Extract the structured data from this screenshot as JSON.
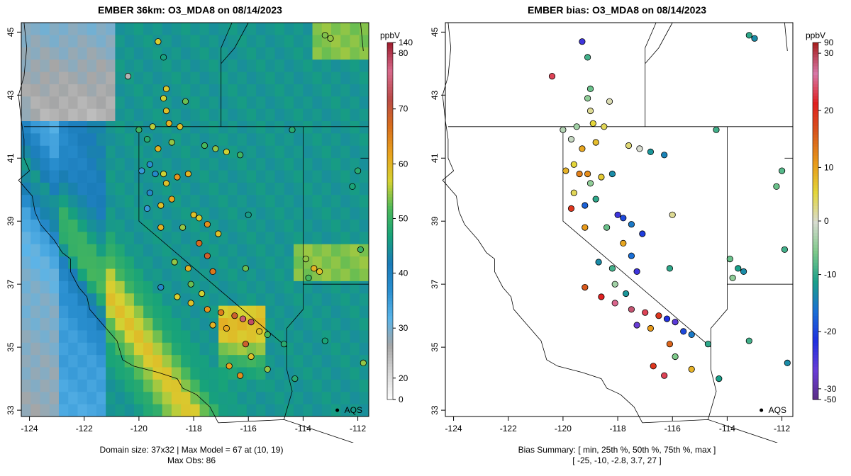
{
  "left_panel": {
    "title": "EMBER 36km: O3_MDA8 on 08/14/2023",
    "caption_line1": "Domain size: 37x32 | Max Model = 67 at (10, 19)",
    "caption_line2": "Max Obs: 86",
    "legend_unit": "ppbV",
    "legend_ticks": [
      "140",
      "80",
      "70",
      "60",
      "50",
      "40",
      "30",
      "20",
      "0"
    ],
    "marker_label": "AQS"
  },
  "right_panel": {
    "title": "EMBER bias: O3_MDA8 on 08/14/2023",
    "caption_line1": "Bias Summary: [ min, 25th %, 50th %, 75th %, max ]",
    "caption_line2": "[ -25,   -10,   -2.8,   3.7,   27 ]",
    "legend_unit": "ppbV",
    "legend_ticks": [
      "90",
      "30",
      "20",
      "10",
      "0",
      "-10",
      "-20",
      "-30",
      "-50"
    ],
    "marker_label": "AQS"
  },
  "axes": {
    "x_ticks": [
      "-124",
      "-122",
      "-120",
      "-118",
      "-116",
      "-114",
      "-112"
    ],
    "y_ticks": [
      "33",
      "35",
      "37",
      "39",
      "41",
      "43",
      "45"
    ],
    "lon_range": [
      -124.3,
      -111.6
    ],
    "lat_range": [
      32.8,
      45.3
    ]
  },
  "colors": {
    "ember_scale": [
      "#ffffff",
      "#d9d9d9",
      "#a6a6a6",
      "#5ab4e8",
      "#2a8fd0",
      "#1a7bb8",
      "#17a37a",
      "#4cb85a",
      "#d6d232",
      "#e8a21e",
      "#d86e1c",
      "#b94a48",
      "#d86a8c",
      "#a02030"
    ],
    "bias_scale": [
      "#5a2d82",
      "#6a3dd6",
      "#2030e0",
      "#1a6fd6",
      "#1aa08a",
      "#7ec98a",
      "#d8dcd0",
      "#e4d63a",
      "#e89a1a",
      "#d8581c",
      "#e02020",
      "#d878a8",
      "#a82020"
    ]
  },
  "chart_data": {
    "type": "map",
    "panels": [
      "EMBER 36km: O3_MDA8 on 08/14/2023",
      "EMBER bias: O3_MDA8 on 08/14/2023"
    ],
    "units": "ppbV",
    "domain": "37x32",
    "max_model": 67,
    "max_model_cell": [
      10,
      19
    ],
    "max_obs": 86,
    "bias_summary": {
      "min": -25,
      "p25": -10,
      "p50": -2.8,
      "p75": 3.7,
      "max": 27
    },
    "ember_legend_range": [
      0,
      140
    ],
    "bias_legend_range": [
      -50,
      90
    ],
    "aqs_marker": {
      "lon": -112.75,
      "lat": 33.0,
      "label": "AQS"
    },
    "stations": [
      {
        "lon": -119.3,
        "lat": 44.7,
        "o3": 56,
        "bias": -22
      },
      {
        "lon": -119.1,
        "lat": 44.2,
        "o3": 41,
        "bias": -8
      },
      {
        "lon": -120.4,
        "lat": 43.6,
        "o3": 12,
        "bias": 22
      },
      {
        "lon": -113.2,
        "lat": 44.9,
        "o3": 51,
        "bias": -9
      },
      {
        "lon": -113.0,
        "lat": 44.8,
        "o3": 52,
        "bias": -12
      },
      {
        "lon": -119.0,
        "lat": 43.2,
        "o3": 57,
        "bias": -6
      },
      {
        "lon": -119.1,
        "lat": 42.9,
        "o3": 55,
        "bias": -4
      },
      {
        "lon": -119.0,
        "lat": 42.5,
        "o3": 58,
        "bias": 2
      },
      {
        "lon": -118.3,
        "lat": 42.8,
        "o3": 50,
        "bias": 1
      },
      {
        "lon": -119.5,
        "lat": 42.0,
        "o3": 54,
        "bias": -3
      },
      {
        "lon": -118.9,
        "lat": 42.1,
        "o3": 60,
        "bias": 5
      },
      {
        "lon": -118.5,
        "lat": 42.0,
        "o3": 58,
        "bias": 4
      },
      {
        "lon": -118.8,
        "lat": 41.5,
        "o3": 52,
        "bias": 7
      },
      {
        "lon": -119.3,
        "lat": 41.3,
        "o3": 60,
        "bias": 9
      },
      {
        "lon": -120.0,
        "lat": 41.9,
        "o3": 47,
        "bias": -2
      },
      {
        "lon": -119.7,
        "lat": 41.6,
        "o3": 44,
        "bias": -1
      },
      {
        "lon": -117.6,
        "lat": 41.4,
        "o3": 48,
        "bias": 3
      },
      {
        "lon": -117.2,
        "lat": 41.3,
        "o3": 52,
        "bias": 0
      },
      {
        "lon": -116.8,
        "lat": 41.2,
        "o3": 55,
        "bias": -11
      },
      {
        "lon": -116.3,
        "lat": 41.1,
        "o3": 47,
        "bias": -13
      },
      {
        "lon": -114.4,
        "lat": 41.9,
        "o3": 44,
        "bias": -8
      },
      {
        "lon": -119.6,
        "lat": 40.8,
        "o3": 28,
        "bias": 5
      },
      {
        "lon": -119.9,
        "lat": 40.6,
        "o3": 26,
        "bias": 8
      },
      {
        "lon": -119.4,
        "lat": 40.5,
        "o3": 30,
        "bias": 12
      },
      {
        "lon": -119.1,
        "lat": 40.5,
        "o3": 55,
        "bias": 11
      },
      {
        "lon": -119.0,
        "lat": 40.2,
        "o3": 58,
        "bias": -4
      },
      {
        "lon": -118.6,
        "lat": 40.4,
        "o3": 64,
        "bias": 6
      },
      {
        "lon": -118.2,
        "lat": 40.5,
        "o3": 60,
        "bias": -12
      },
      {
        "lon": -119.2,
        "lat": 39.5,
        "o3": 58,
        "bias": -16
      },
      {
        "lon": -118.8,
        "lat": 39.7,
        "o3": 62,
        "bias": -9
      },
      {
        "lon": -119.6,
        "lat": 39.9,
        "o3": 30,
        "bias": 4
      },
      {
        "lon": -119.7,
        "lat": 39.4,
        "o3": 26,
        "bias": 18
      },
      {
        "lon": -118.0,
        "lat": 39.2,
        "o3": 58,
        "bias": -22
      },
      {
        "lon": -117.8,
        "lat": 39.1,
        "o3": 56,
        "bias": -18
      },
      {
        "lon": -117.5,
        "lat": 38.9,
        "o3": 65,
        "bias": -14
      },
      {
        "lon": -117.1,
        "lat": 38.6,
        "o3": 58,
        "bias": -19
      },
      {
        "lon": -118.4,
        "lat": 38.8,
        "o3": 52,
        "bias": -6
      },
      {
        "lon": -119.2,
        "lat": 38.8,
        "o3": 60,
        "bias": 10
      },
      {
        "lon": -116.0,
        "lat": 39.2,
        "o3": 40,
        "bias": 2
      },
      {
        "lon": -117.8,
        "lat": 38.3,
        "o3": 70,
        "bias": 9
      },
      {
        "lon": -118.7,
        "lat": 37.7,
        "o3": 52,
        "bias": -12
      },
      {
        "lon": -118.2,
        "lat": 37.5,
        "o3": 60,
        "bias": -8
      },
      {
        "lon": -117.5,
        "lat": 37.9,
        "o3": 72,
        "bias": -15
      },
      {
        "lon": -117.3,
        "lat": 37.4,
        "o3": 68,
        "bias": -22
      },
      {
        "lon": -116.1,
        "lat": 37.5,
        "o3": 50,
        "bias": -9
      },
      {
        "lon": -113.9,
        "lat": 37.8,
        "o3": 52,
        "bias": -6
      },
      {
        "lon": -113.6,
        "lat": 37.5,
        "o3": 60,
        "bias": -10
      },
      {
        "lon": -113.4,
        "lat": 37.4,
        "o3": 58,
        "bias": -12
      },
      {
        "lon": -113.8,
        "lat": 37.2,
        "o3": 48,
        "bias": -4
      },
      {
        "lon": -119.2,
        "lat": 36.9,
        "o3": 30,
        "bias": 15
      },
      {
        "lon": -118.6,
        "lat": 36.6,
        "o3": 56,
        "bias": 20
      },
      {
        "lon": -118.1,
        "lat": 36.4,
        "o3": 58,
        "bias": 24
      },
      {
        "lon": -117.5,
        "lat": 36.2,
        "o3": 64,
        "bias": 27
      },
      {
        "lon": -117.0,
        "lat": 36.1,
        "o3": 67,
        "bias": 22
      },
      {
        "lon": -116.5,
        "lat": 36.0,
        "o3": 72,
        "bias": 18
      },
      {
        "lon": -116.2,
        "lat": 35.9,
        "o3": 80,
        "bias": -20
      },
      {
        "lon": -115.9,
        "lat": 35.8,
        "o3": 86,
        "bias": -24
      },
      {
        "lon": -116.8,
        "lat": 35.6,
        "o3": 62,
        "bias": 10
      },
      {
        "lon": -117.3,
        "lat": 35.7,
        "o3": 60,
        "bias": -25
      },
      {
        "lon": -115.6,
        "lat": 35.5,
        "o3": 58,
        "bias": -18
      },
      {
        "lon": -115.3,
        "lat": 35.4,
        "o3": 48,
        "bias": -14
      },
      {
        "lon": -114.7,
        "lat": 35.1,
        "o3": 44,
        "bias": -9
      },
      {
        "lon": -116.1,
        "lat": 35.1,
        "o3": 72,
        "bias": 14
      },
      {
        "lon": -115.9,
        "lat": 34.7,
        "o3": 58,
        "bias": -5
      },
      {
        "lon": -116.7,
        "lat": 34.4,
        "o3": 62,
        "bias": 18
      },
      {
        "lon": -116.3,
        "lat": 34.1,
        "o3": 65,
        "bias": 22
      },
      {
        "lon": -115.3,
        "lat": 34.3,
        "o3": 52,
        "bias": 8
      },
      {
        "lon": -114.3,
        "lat": 34.0,
        "o3": 44,
        "bias": -10
      },
      {
        "lon": -113.2,
        "lat": 35.2,
        "o3": 42,
        "bias": -8
      },
      {
        "lon": -111.8,
        "lat": 34.5,
        "o3": 52,
        "bias": -12
      },
      {
        "lon": -111.9,
        "lat": 38.1,
        "o3": 46,
        "bias": -8
      },
      {
        "lon": -112.2,
        "lat": 40.1,
        "o3": 42,
        "bias": -6
      },
      {
        "lon": -112.0,
        "lat": 40.6,
        "o3": 44,
        "bias": -7
      },
      {
        "lon": -118.1,
        "lat": 37.0,
        "o3": 50,
        "bias": -3
      },
      {
        "lon": -117.7,
        "lat": 36.7,
        "o3": 55,
        "bias": -11
      }
    ]
  }
}
